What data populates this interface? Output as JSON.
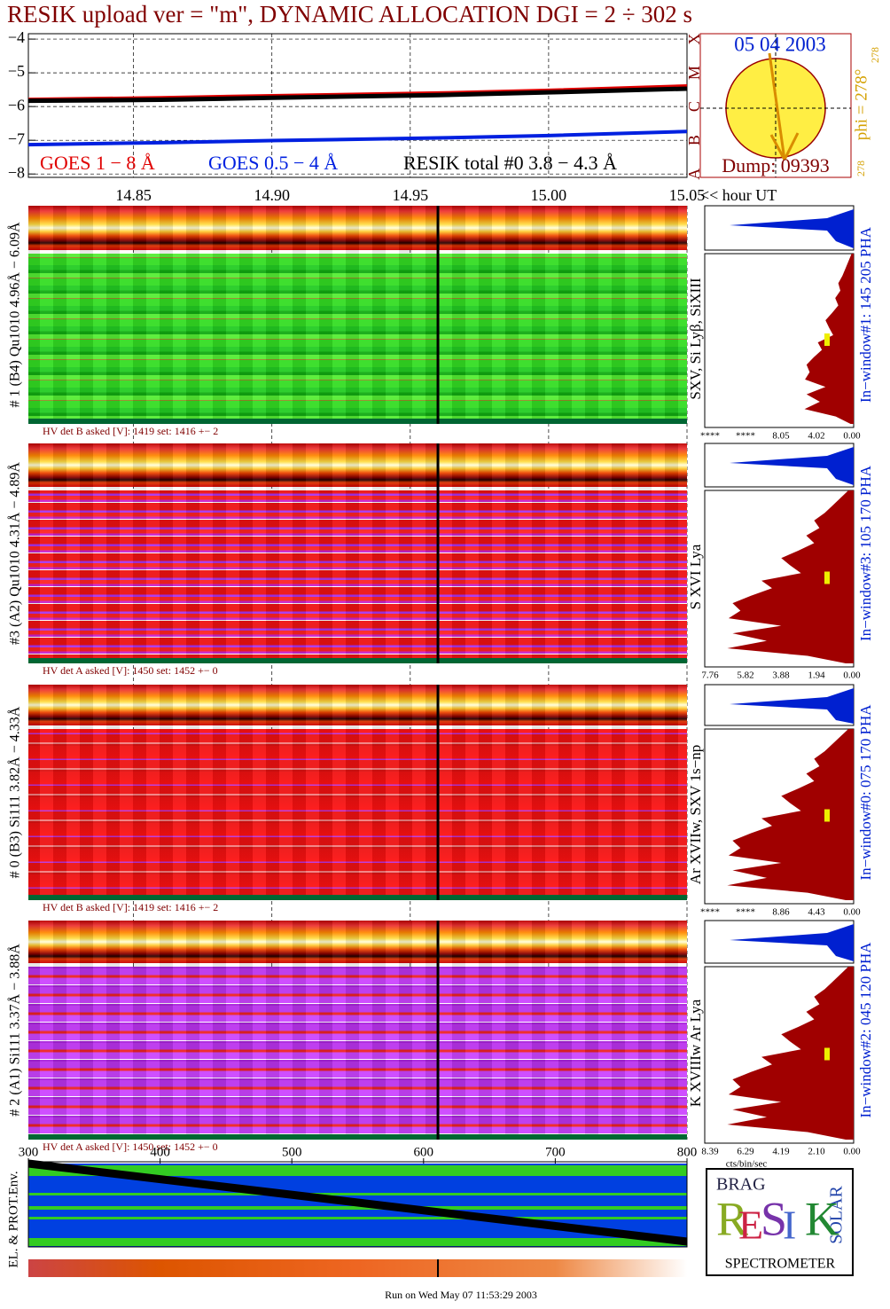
{
  "title": "RESIK upload ver = \"m\", DYNAMIC ALLOCATION  DGI =   2 ÷ 302 s",
  "chart_data": [
    {
      "type": "line",
      "x": [
        14.812,
        14.86,
        14.9,
        14.96,
        15.0,
        15.05
      ],
      "xlim": [
        14.812,
        15.05
      ],
      "xticks": [
        14.85,
        {
          "value": 14.9,
          "label": "14.90"
        },
        14.95,
        {
          "value": 15.0,
          "label": "15.00"
        },
        15.05
      ],
      "x_label": "<< hour UT",
      "ylim": [
        -8.1,
        -3.84
      ],
      "yticks": [
        {
          "value": -4,
          "label": "−4"
        },
        {
          "value": -5,
          "label": "−5"
        },
        {
          "value": -6,
          "label": "−6"
        },
        {
          "value": -7,
          "label": "−7"
        },
        {
          "value": -8,
          "label": "−8"
        }
      ],
      "grid": true,
      "cursor": 14.96,
      "series": [
        {
          "name": "GOES 1 − 8 Å",
          "color": "#e00000",
          "values": [
            -5.79,
            -5.74,
            -5.68,
            -5.6,
            -5.52,
            -5.39
          ]
        },
        {
          "name": "GOES 0.5 − 4 Å",
          "color": "#0020e0",
          "values": [
            -7.13,
            -7.07,
            -7.01,
            -6.93,
            -6.86,
            -6.74
          ]
        },
        {
          "name": "RESIK total #0  3.8 − 4.3 Å",
          "color": "#000000",
          "values": [
            -5.83,
            -5.8,
            -5.74,
            -5.66,
            -5.58,
            -5.47
          ]
        }
      ]
    },
    {
      "type": "strip",
      "xlim": [
        300,
        800
      ],
      "xticks": [
        300,
        400,
        500,
        600,
        700,
        800
      ],
      "y_label": "EL. & PROT.Env."
    }
  ],
  "sun": {
    "date": "05 04 2003",
    "phi": "phi = 278°",
    "phi_sub": "278",
    "phi_low": "278",
    "dump": "Dump: 09393",
    "classes": [
      {
        "value": -8,
        "label": "A"
      },
      {
        "value": -7,
        "label": "B"
      },
      {
        "value": -6,
        "label": "C"
      },
      {
        "value": -5,
        "label": "M"
      },
      {
        "value": -4,
        "label": "X"
      }
    ]
  },
  "panels": [
    {
      "label": "# 1 (B4) Qu1010 4.96Å − 6.09Å",
      "hv": "HV det B asked [V]:  1419 set:  1416 +−   2",
      "lines": "SXV, Si Lyβ, SiXIII",
      "window": "In−window#1:  145 205 PHA",
      "pha_ticks": [
        "****",
        "****",
        "8.05",
        "4.02",
        "0.00"
      ]
    },
    {
      "label": "#3 (A2) Qu1010  4.31Å − 4.89Å",
      "hv": "HV det A asked [V]:  1450 set:  1452 +−    0",
      "lines": "S XVI Lya",
      "window": "In−window#3:  105 170 PHA",
      "pha_ticks": [
        "7.76",
        "5.82",
        "3.88",
        "1.94",
        "0.00"
      ]
    },
    {
      "label": "# 0 (B3) Si111  3.82Å − 4.33Å",
      "hv": "HV det B asked [V]:  1419 set:  1416 +−   2",
      "lines": "Ar XVIIw,  SXV 1s−np",
      "window": "In−window#0:  075 170 PHA",
      "pha_ticks": [
        "****",
        "****",
        "8.86",
        "4.43",
        "0.00"
      ]
    },
    {
      "label": "# 2 (A1) Si111  3.37Å − 3.88Å",
      "hv": "HV det A asked [V]:  1450 set:  1452 +−    0",
      "lines": "K XVIIIw  Ar Lya",
      "window": "In−window#2:  045 120 PHA",
      "pha_ticks": [
        "8.39",
        "6.29",
        "4.19",
        "2.10",
        "0.00"
      ]
    }
  ],
  "pha_unit": "cts/bin/sec",
  "logo": {
    "brag": "BRAG",
    "letters": [
      "R",
      "E",
      "S",
      "I",
      "K"
    ],
    "solar": "SOLAR",
    "spectrometer": "SPECTROMETER"
  },
  "footer": "Run on Wed May 07 11:53:29 2003"
}
